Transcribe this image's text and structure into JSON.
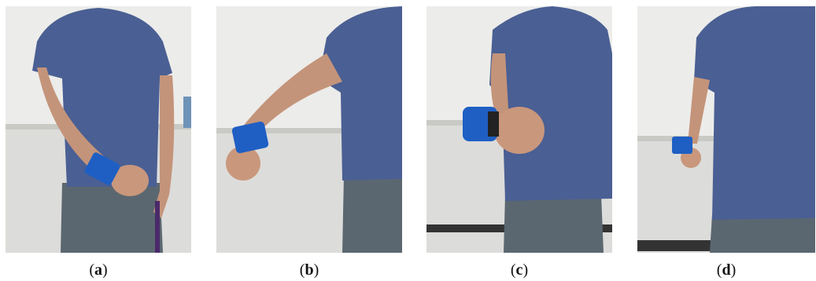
{
  "panels": [
    {
      "open": "(",
      "letter": "a",
      "close": ")"
    },
    {
      "open": "(",
      "letter": "b",
      "close": ")"
    },
    {
      "open": "(",
      "letter": "c",
      "close": ")"
    },
    {
      "open": "(",
      "letter": "d",
      "close": ")"
    }
  ]
}
